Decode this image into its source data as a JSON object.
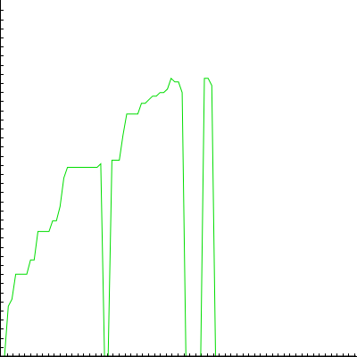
{
  "chart_data": {
    "type": "line",
    "title": "",
    "xlabel": "",
    "ylabel": "",
    "xlim": [
      0,
      96
    ],
    "ylim": [
      0,
      100
    ],
    "grid": false,
    "legend": "none",
    "x": [
      0,
      1,
      2,
      3,
      4,
      5,
      6,
      7,
      8,
      9,
      10,
      11,
      12,
      13,
      14,
      15,
      16,
      17,
      18,
      19,
      20,
      21,
      22,
      23,
      24,
      25,
      26,
      27,
      28,
      29,
      30,
      31,
      32,
      33,
      34,
      35,
      36,
      37,
      38,
      39,
      40,
      41,
      42,
      43,
      44,
      45,
      46,
      47,
      48,
      49,
      50,
      51,
      52,
      53,
      54,
      55,
      56,
      57,
      58,
      59,
      60,
      61,
      62,
      63,
      64,
      65,
      66,
      67,
      68,
      69,
      70,
      71,
      72,
      73,
      74,
      75,
      76,
      77,
      78,
      79,
      80,
      81,
      82,
      83,
      84,
      85,
      86,
      87,
      88,
      89,
      90,
      91,
      92,
      93,
      94,
      95,
      96
    ],
    "series": [
      {
        "color": "#00dd00",
        "values": [
          0,
          0,
          14,
          16,
          23,
          23,
          23,
          23,
          27,
          27,
          35,
          35,
          35,
          35,
          38,
          38,
          42,
          50,
          53,
          53,
          53,
          53,
          53,
          53,
          53,
          53,
          53,
          54,
          0,
          0,
          55,
          55,
          55,
          62,
          68,
          68,
          68,
          68,
          71,
          71,
          72,
          73,
          73,
          74,
          74,
          75,
          78,
          77,
          77,
          74,
          0,
          0,
          0,
          0,
          0,
          78,
          78,
          76,
          0,
          0,
          0,
          0,
          0,
          0,
          0,
          0,
          0,
          0,
          0,
          0,
          0,
          0,
          0,
          0,
          0,
          0,
          0,
          0,
          0,
          0,
          0,
          0,
          0,
          0,
          0,
          0,
          0,
          0,
          0,
          0,
          0,
          0,
          0,
          0,
          0,
          0,
          0
        ]
      },
      {
        "color": "#0000cc",
        "values": [
          0,
          0,
          0,
          0,
          0,
          0,
          0,
          0,
          0,
          0,
          0,
          0,
          0,
          0,
          0,
          0,
          0,
          0,
          0,
          0,
          0,
          0,
          0,
          0,
          0,
          0,
          0,
          0,
          0,
          0,
          0,
          0,
          0,
          0,
          0,
          0,
          0,
          0,
          0,
          0,
          0,
          0,
          0,
          0,
          0,
          0,
          0,
          0,
          0,
          0,
          0,
          0,
          0,
          0,
          0,
          0,
          0,
          0,
          0,
          0,
          0,
          0,
          0,
          0,
          0,
          0,
          0,
          0,
          0,
          0,
          0,
          0,
          0,
          0,
          0,
          0,
          0,
          0,
          0,
          0,
          0,
          0,
          0,
          0,
          0,
          0,
          0,
          0,
          0,
          0,
          0,
          0,
          0,
          0,
          0,
          0,
          0
        ]
      },
      {
        "color": "#dd0000",
        "values": [
          0,
          0,
          0,
          0,
          0,
          0,
          0,
          0,
          0,
          0,
          0,
          0,
          0,
          0,
          0,
          0,
          0,
          0,
          0,
          0,
          0,
          0,
          0,
          0,
          0,
          0,
          0,
          0,
          0,
          0,
          0,
          0,
          0,
          0,
          0,
          0,
          0,
          0,
          0,
          0,
          0,
          0,
          0,
          0,
          0,
          0,
          0,
          0,
          0,
          0,
          0,
          0,
          0,
          0,
          0,
          0,
          0,
          0,
          0,
          0,
          0,
          0,
          0,
          0,
          0,
          0,
          0,
          0,
          0,
          0,
          0,
          0,
          0,
          0,
          0,
          0,
          0,
          0,
          0,
          0,
          0,
          0,
          0,
          0,
          0,
          0,
          0,
          0,
          0,
          0,
          0,
          0,
          0,
          0,
          0,
          0,
          0
        ]
      },
      {
        "color": "#000000",
        "values": [
          0,
          0,
          0,
          0,
          0,
          0,
          0,
          0,
          0,
          0,
          0,
          0,
          0,
          0,
          0,
          0,
          0,
          0,
          0,
          0,
          0,
          0,
          0,
          0,
          0,
          0,
          0,
          0,
          0,
          0,
          0,
          0,
          0,
          0,
          0,
          0,
          0,
          0,
          0,
          0,
          0,
          0,
          0,
          0,
          0,
          0,
          0,
          0,
          0,
          0,
          0,
          0,
          0,
          0,
          0,
          0,
          0,
          0,
          0,
          0,
          0,
          0,
          0,
          0,
          0,
          0,
          0,
          0,
          0,
          0,
          0,
          0,
          0,
          0,
          0,
          0,
          0,
          0,
          0,
          0,
          0,
          0,
          0,
          0,
          0,
          0,
          0,
          0,
          0,
          0,
          0,
          0,
          0,
          0,
          0,
          0,
          0
        ]
      }
    ]
  }
}
